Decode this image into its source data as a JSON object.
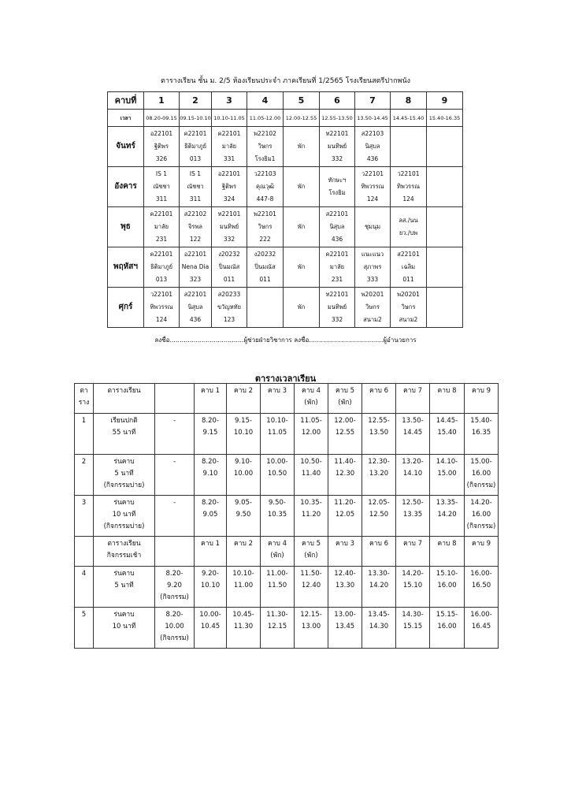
{
  "schedule": {
    "title": "ตารางเรียน ชั้น ม. 2/5 ห้องเรียนประจำ ภาคเรียนที่ 1/2565 โรงเรียนสตรีปากพนัง",
    "header": [
      "คาบที่",
      "1",
      "2",
      "3",
      "4",
      "5",
      "6",
      "7",
      "8",
      "9"
    ],
    "time_row": [
      "เวลา",
      "08.20-09.15",
      "09.15-10.10",
      "10.10-11.05",
      "11.05-12.00",
      "12.00-12.55",
      "12.55-13.50",
      "13.50-14.45",
      "14.45-15.40",
      "15.40-16.35"
    ],
    "rows": [
      {
        "day": "จันทร์",
        "cells": [
          "อ22101\nฐิติพร\n326",
          "ค22101\nธิติมาภูย์\n013",
          "ค22101\nมาลัย\n331",
          "พ22102\nวิษกร\nโรงยิม1",
          "พัก",
          "ท22101\nมนทิพย์\n332",
          "ส22103\nนิสุบล\n436",
          "",
          ""
        ]
      },
      {
        "day": "อังคาร",
        "cells": [
          "IS 1\nณัชชา\n311",
          "IS 1\nณัชชา\n311",
          "อ22101\nฐิติพร\n324",
          "ว22103\nคุณวุฒิ\n447-8",
          "พัก",
          "ทักษะฯ\nโรงยิม",
          "ว22101\nทิพวรรณ\n124",
          "ว22101\nทิพวรรณ\n124",
          ""
        ]
      },
      {
        "day": "พุธ",
        "cells": [
          "ค22101\nมาลัย\n231",
          "ส22102\nจิรพล\n122",
          "ท22101\nมนทิพย์\n332",
          "พ22101\nวิษกร\n222",
          "พัก",
          "ส22101\nนิสุบล\n436",
          "ชุมนุม",
          "ลส./นน\nยว./บพ",
          ""
        ]
      },
      {
        "day": "พฤหัสฯ",
        "cells": [
          "ค22101\nธิติมาภูย์\n013",
          "อ22101\nNena Dia\n323",
          "ง20232\nปิ่นมณัส\n011",
          "ง20232\nปิ่นมณัส\n011",
          "พัก",
          "ค22101\nมาลัย\n231",
          "แนะแนว\nสุภาพร\n333",
          "ส22101\nเฉลิม\n011",
          ""
        ]
      },
      {
        "day": "ศุกร์",
        "cells": [
          "ว22101\nทิพวรรณ\n124",
          "ส22101\nนิสุบล\n436",
          "ส20233\nขวัญหทัย\n123",
          "",
          "พัก",
          "ท22101\nมนทิพย์\n332",
          "พ20201\nวิษกร\nสนาม2",
          "พ20201\nวิษกร\nสนาม2",
          ""
        ]
      }
    ],
    "signature": "ลงชื่อ.....................................ผู้ช่วยฝ่ายวิชาการ ลงชื่อ.....................................ผู้อำนวยการ"
  },
  "timetable": {
    "title": "ตารางเวลาเรียน",
    "rows": [
      {
        "type": "h",
        "cells": [
          "ตา\nราง",
          "ตารางเรียน",
          "",
          "คาบ 1",
          "คาบ 2",
          "คาบ 3",
          "คาบ 4\n(พัก)",
          "คาบ 5\n(พัก)",
          "คาบ 6",
          "คาบ 7",
          "คาบ 8",
          "คาบ 9"
        ]
      },
      {
        "type": "r",
        "cells": [
          "1",
          "เรียนปกติ\n55 นาที",
          "-",
          "8.20-\n9.15",
          "9.15-\n10.10",
          "10.10-\n11.05",
          "11.05-\n12.00",
          "12.00-\n12.55",
          "12.55-\n13.50",
          "13.50-\n14.45",
          "14.45-\n15.40",
          "15.40-\n16.35"
        ]
      },
      {
        "type": "r",
        "cells": [
          "2",
          "ร่นคาบ\n5 นาที\n(กิจกรรมบ่าย)",
          "-",
          "8.20-\n9.10",
          "9.10-\n10.00",
          "10.00-\n10.50",
          "10.50-\n11.40",
          "11.40-\n12.30",
          "12.30-\n13.20",
          "13.20-\n14.10",
          "14.10-\n15.00",
          "15.00-\n16.00\n(กิจกรรม)"
        ]
      },
      {
        "type": "r",
        "cells": [
          "3",
          "ร่นคาบ\n10 นาที\n(กิจกรรมบ่าย)",
          "-",
          "8.20-\n9.05",
          "9.05-\n9.50",
          "9.50-\n10.35",
          "10.35-\n11.20",
          "11.20-\n12.05",
          "12.05-\n12.50",
          "12.50-\n13.35",
          "13.35-\n14.20",
          "14.20-\n16.00\n(กิจกรรม)"
        ]
      },
      {
        "type": "h",
        "cells": [
          "",
          "ตารางเรียน\nกิจกรรมเช้า",
          "",
          "คาบ 1",
          "คาบ 2",
          "คาบ 4\n(พัก)",
          "คาบ 5\n(พัก)",
          "คาบ 3",
          "คาบ 6",
          "คาบ 7",
          "คาบ 8",
          "คาบ 9"
        ]
      },
      {
        "type": "r",
        "cells": [
          "4",
          "ร่นคาบ\n5 นาที",
          "8.20-\n9.20\n(กิจกรรม)",
          "9.20-\n10.10",
          "10.10-\n11.00",
          "11.00-\n11.50",
          "11.50-\n12.40",
          "12.40-\n13.30",
          "13.30-\n14.20",
          "14.20-\n15.10",
          "15.10-\n16.00",
          "16.00-\n16.50"
        ]
      },
      {
        "type": "r",
        "cells": [
          "5",
          "ร่นคาบ\n10 นาที",
          "8.20-\n10.00\n(กิจกรรม)",
          "10.00-\n10.45",
          "10.45-\n11.30",
          "11.30-\n12.15",
          "12.15-\n13.00",
          "13.00-\n13.45",
          "13.45-\n14.30",
          "14.30-\n15.15",
          "15.15-\n16.00",
          "16.00-\n16.45"
        ]
      }
    ]
  }
}
